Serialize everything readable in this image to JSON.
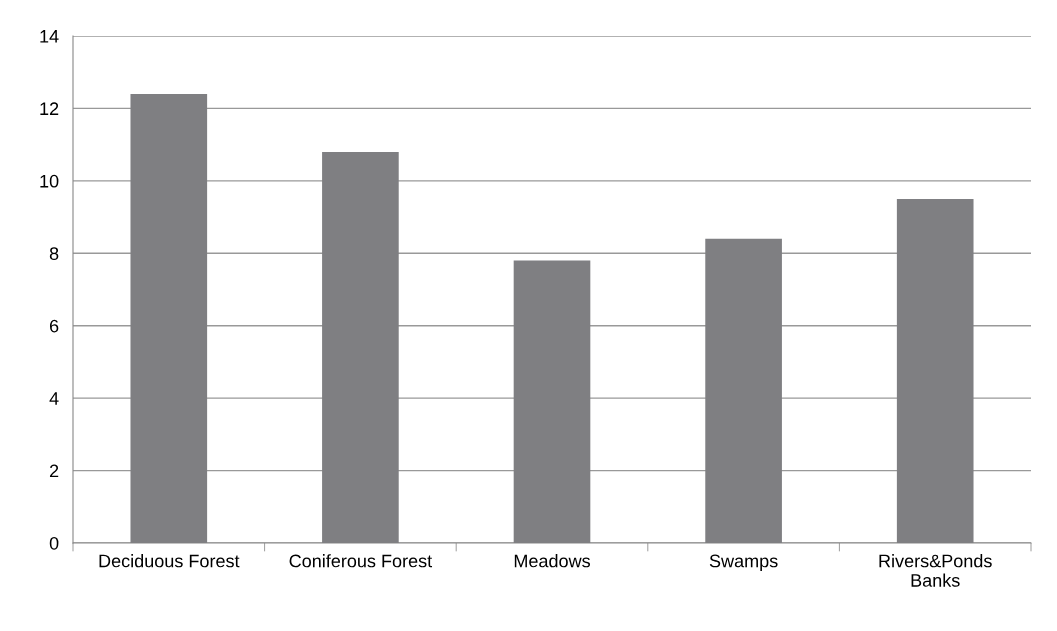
{
  "chart_data": {
    "type": "bar",
    "categories": [
      "Deciduous Forest",
      "Coniferous Forest",
      "Meadows",
      "Swamps",
      "Rivers&Ponds\nBanks"
    ],
    "values": [
      12.4,
      10.8,
      7.8,
      8.4,
      9.5
    ],
    "color": "#7f7f82",
    "ylim": [
      0,
      14
    ],
    "yticks": [
      0,
      2,
      4,
      6,
      8,
      10,
      12,
      14
    ],
    "grid": "y",
    "legend": false
  }
}
